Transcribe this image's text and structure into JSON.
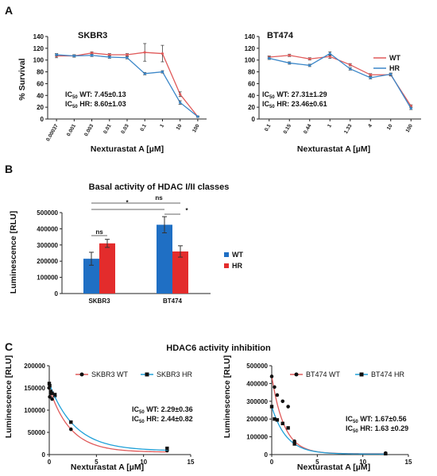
{
  "panels": {
    "a": "A",
    "b": "B",
    "c": "C"
  },
  "chart_data": [
    {
      "id": "a1",
      "type": "line",
      "title": "SKBR3",
      "xlabel": "Nexturastat A [µM]",
      "ylabel": "% Survival",
      "categories": [
        "0.00037",
        "0.001",
        "0.003",
        "0.01",
        "0.03",
        "0.1",
        "1",
        "10",
        "100"
      ],
      "ylim": [
        0,
        140
      ],
      "yticks": [
        0,
        20,
        40,
        60,
        80,
        100,
        120,
        140
      ],
      "series": [
        {
          "name": "WT",
          "color": "#e05a5a",
          "values": [
            107,
            107,
            112,
            109,
            109,
            113,
            111,
            42,
            4
          ],
          "errors": [
            3,
            2,
            2,
            2,
            2,
            15,
            14,
            4,
            1
          ]
        },
        {
          "name": "HR",
          "color": "#3a86c8",
          "values": [
            109,
            107,
            108,
            105,
            104,
            77,
            80,
            28,
            4
          ],
          "errors": [
            2,
            2,
            2,
            2,
            2,
            2,
            2,
            3,
            1
          ]
        }
      ],
      "annotations": [
        {
          "label": "IC",
          "sub": "50",
          "text": " WT: 7.45±0.13"
        },
        {
          "label": "IC",
          "sub": "50",
          "text": " HR: 8.60±1.03"
        }
      ]
    },
    {
      "id": "a2",
      "type": "line",
      "title": "BT474",
      "xlabel": "Nexturastat A [µM]",
      "categories": [
        "0.1",
        "0.15",
        "0.44",
        "1",
        "1.33",
        "4",
        "10",
        "100"
      ],
      "ylim": [
        0,
        140
      ],
      "yticks": [
        0,
        20,
        40,
        60,
        80,
        100,
        120,
        140
      ],
      "series": [
        {
          "name": "WT",
          "color": "#e05a5a",
          "values": [
            105,
            108,
            102,
            106,
            92,
            75,
            75,
            22
          ],
          "errors": [
            2,
            2,
            2,
            3,
            2,
            2,
            2,
            2
          ]
        },
        {
          "name": "HR",
          "color": "#3a86c8",
          "values": [
            103,
            95,
            91,
            111,
            85,
            70,
            76,
            18
          ],
          "errors": [
            2,
            2,
            2,
            3,
            2,
            2,
            2,
            2
          ]
        }
      ],
      "annotations": [
        {
          "label": "IC",
          "sub": "50",
          "text": " WT: 27.31±1.29"
        },
        {
          "label": "IC",
          "sub": "50",
          "text": " HR: 23.46±0.61"
        }
      ],
      "legend_position": "right"
    },
    {
      "id": "b",
      "type": "bar",
      "title": "Basal activity of HDAC I/II classes",
      "ylabel": "Luminescence [RLU]",
      "categories": [
        "SKBR3",
        "BT474"
      ],
      "ylim": [
        0,
        500000
      ],
      "yticks": [
        0,
        100000,
        200000,
        300000,
        400000,
        500000
      ],
      "series": [
        {
          "name": "WT",
          "color": "#1f6fc4",
          "values": [
            215000,
            425000
          ],
          "errors": [
            40000,
            50000
          ]
        },
        {
          "name": "HR",
          "color": "#e32c2c",
          "values": [
            310000,
            260000
          ],
          "errors": [
            25000,
            35000
          ]
        }
      ],
      "significance": [
        "ns",
        "*",
        "ns",
        "*"
      ],
      "legend_position": "right"
    },
    {
      "id": "c1",
      "type": "scatter",
      "title": "HDAC6 activity inhibition",
      "xlabel": "Nexturastat A [µM]",
      "ylabel": "Luminescence [RLU]",
      "xlim": [
        0,
        15
      ],
      "xticks": [
        0,
        5,
        10,
        15
      ],
      "ylim": [
        0,
        200000
      ],
      "yticks": [
        0,
        50000,
        100000,
        150000,
        200000
      ],
      "series": [
        {
          "name": "SKBR3 WT",
          "color": "#e05a5a",
          "marker": "circle",
          "x": [
            0,
            0.05,
            0.15,
            0.3,
            0.6,
            2.3,
            12.5
          ],
          "y": [
            150000,
            130000,
            138000,
            125000,
            132000,
            57000,
            9000
          ]
        },
        {
          "name": "SKBR3 HR",
          "color": "#1fa0d8",
          "marker": "square",
          "x": [
            0,
            0.05,
            0.15,
            0.3,
            0.6,
            2.3,
            12.5
          ],
          "y": [
            160000,
            155000,
            142000,
            138000,
            135000,
            73000,
            14000
          ]
        }
      ],
      "annotations": [
        {
          "label": "IC",
          "sub": "50",
          "text": " WT: 2.29±0.36"
        },
        {
          "label": "IC",
          "sub": "50",
          "text": " HR: 2.44±0.82"
        }
      ],
      "legend_position": "top"
    },
    {
      "id": "c2",
      "type": "scatter",
      "xlabel": "Nexturastat A [µM]",
      "ylabel": "Luminescence [RLU]",
      "xlim": [
        0,
        15
      ],
      "xticks": [
        0,
        5,
        10,
        15
      ],
      "ylim": [
        0,
        500000
      ],
      "yticks": [
        0,
        100000,
        200000,
        300000,
        400000,
        500000
      ],
      "series": [
        {
          "name": "BT474 WT",
          "color": "#e05a5a",
          "marker": "circle",
          "x": [
            0,
            0.3,
            0.6,
            1.2,
            1.8,
            2.5,
            12.5
          ],
          "y": [
            440000,
            380000,
            335000,
            300000,
            270000,
            75000,
            8000
          ]
        },
        {
          "name": "BT474 HR",
          "color": "#1fa0d8",
          "marker": "square",
          "x": [
            0,
            0.3,
            0.6,
            1.2,
            1.8,
            2.5,
            12.5
          ],
          "y": [
            270000,
            200000,
            195000,
            175000,
            150000,
            60000,
            5000
          ]
        }
      ],
      "annotations": [
        {
          "label": "IC",
          "sub": "50",
          "text": " WT: 1.67±0.56"
        },
        {
          "label": "IC",
          "sub": "50",
          "text": " HR: 1.63 ±0.29"
        }
      ],
      "legend_position": "top"
    }
  ]
}
